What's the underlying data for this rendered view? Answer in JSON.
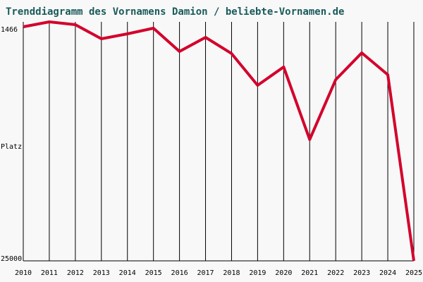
{
  "chart_data": {
    "type": "line",
    "title": "Trenddiagramm des Vornamens Damion / beliebte-Vornamen.de",
    "y_label": "Platz",
    "categories": [
      "2010",
      "2011",
      "2012",
      "2013",
      "2014",
      "2015",
      "2016",
      "2017",
      "2018",
      "2019",
      "2020",
      "2021",
      "2022",
      "2023",
      "2024",
      "2025"
    ],
    "series": [
      {
        "name": "Damion",
        "color": "#d4002c",
        "values": [
          1952,
          1466,
          1744,
          3132,
          2646,
          2091,
          4381,
          2993,
          4589,
          7712,
          5908,
          13056,
          7157,
          4520,
          6671,
          25000
        ]
      }
    ],
    "ylim": [
      1466,
      25000
    ],
    "yticks": [
      1466,
      25000
    ],
    "y_inverted": true,
    "grid": true
  }
}
